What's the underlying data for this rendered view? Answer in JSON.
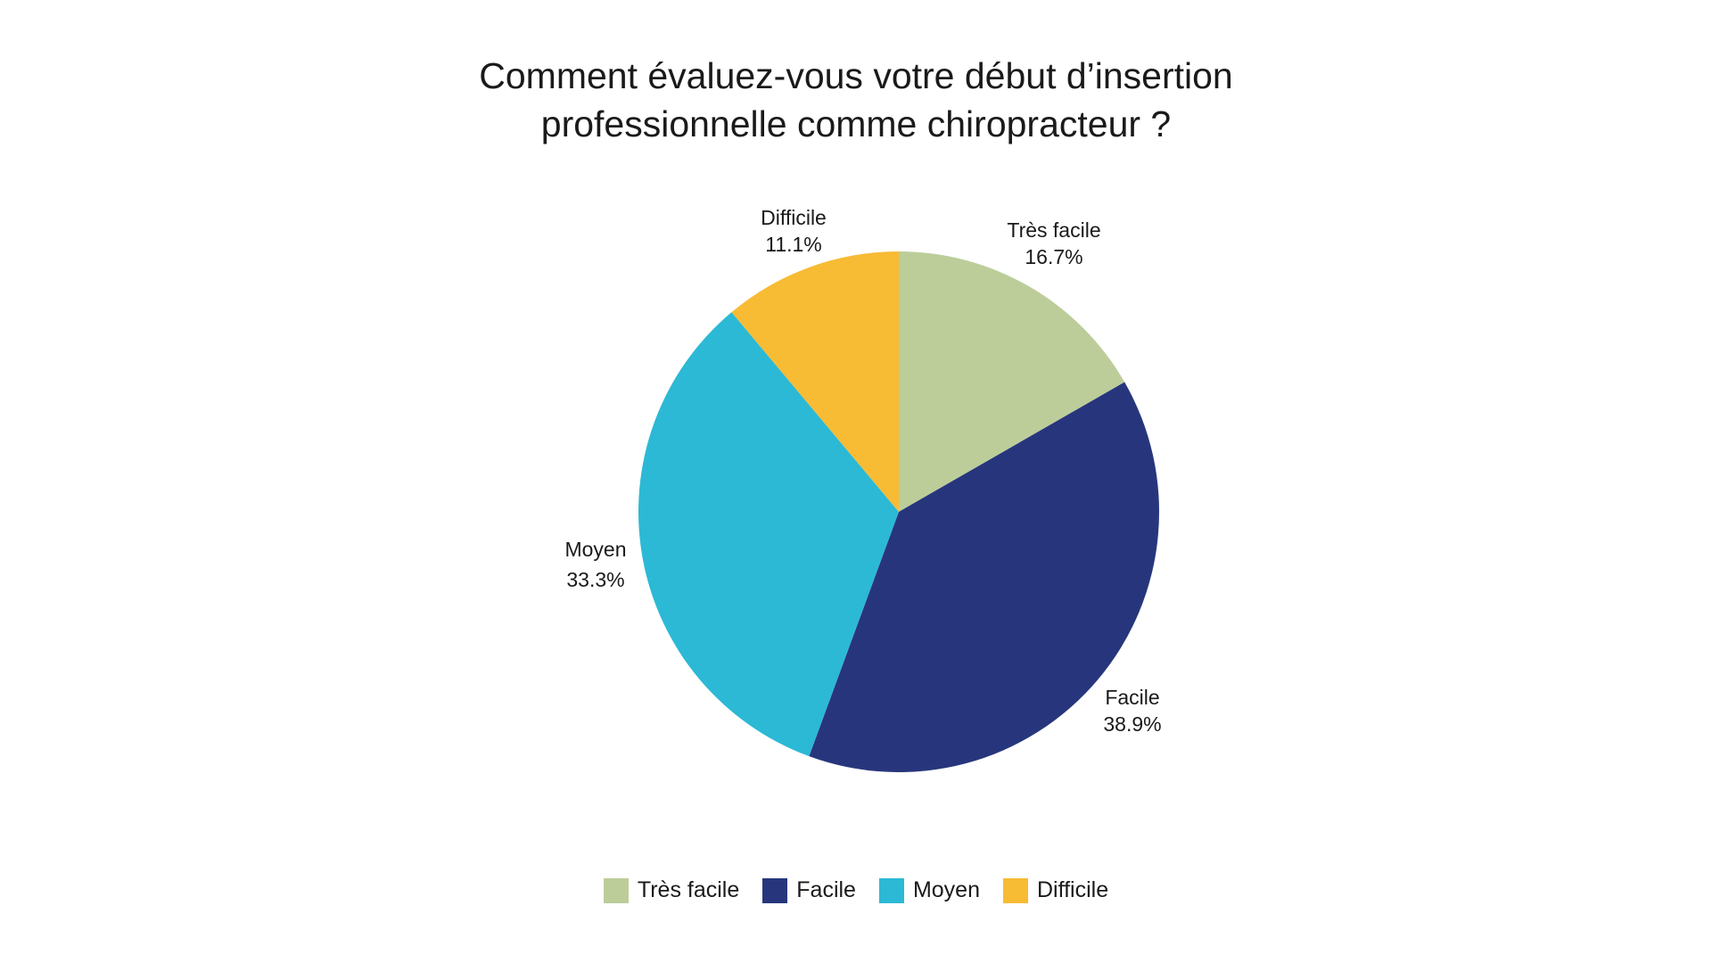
{
  "chart_data": {
    "type": "pie",
    "title_lines": [
      "Comment évaluez-vous votre début d’insertion",
      "professionnelle comme chiropracteur ?"
    ],
    "slices": [
      {
        "label": "Très facile",
        "value": 16.7,
        "value_label": "16.7%",
        "color": "#bccd9a"
      },
      {
        "label": "Facile",
        "value": 38.9,
        "value_label": "38.9%",
        "color": "#27367c"
      },
      {
        "label": "Moyen",
        "value": 33.3,
        "value_label": "33.3%",
        "color": "#2cb9d5"
      },
      {
        "label": "Difficile",
        "value": 11.1,
        "value_label": "11.1%",
        "color": "#f7bb34"
      }
    ],
    "start_angle": "12 o'clock",
    "direction": "clockwise",
    "legend_position": "bottom",
    "legend": [
      {
        "label": "Très facile",
        "color": "#bccd9a"
      },
      {
        "label": "Facile",
        "color": "#27367c"
      },
      {
        "label": "Moyen",
        "color": "#2cb9d5"
      },
      {
        "label": "Difficile",
        "color": "#f7bb34"
      }
    ]
  }
}
